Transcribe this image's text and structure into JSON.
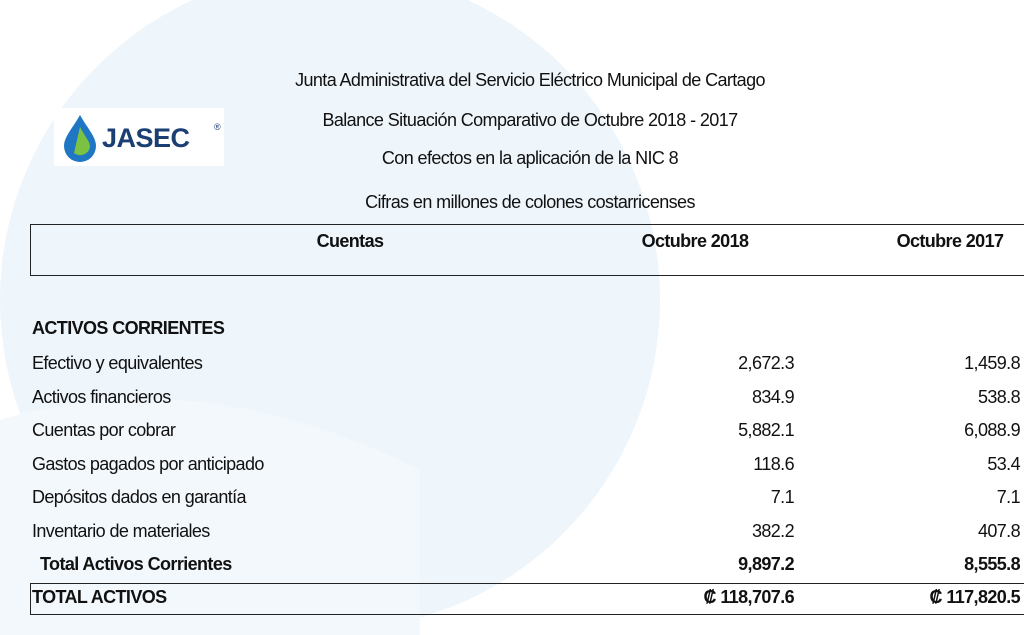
{
  "header": {
    "lines": [
      "Junta Administrativa del Servicio Eléctrico Municipal de Cartago",
      "Balance Situación Comparativo de Octubre 2018 - 2017",
      "Con efectos en la aplicación de la NIC 8",
      "Cifras en millones de colones costarricenses"
    ]
  },
  "logo": {
    "text": "JASEC",
    "mark": "®"
  },
  "table": {
    "columns": [
      "Cuentas",
      "Octubre 2018",
      "Octubre 2017"
    ],
    "section": "ACTIVOS  CORRIENTES",
    "rows": [
      [
        "Efectivo y equivalentes",
        "2,672.3",
        "1,459.8"
      ],
      [
        "Activos financieros",
        "834.9",
        "538.8"
      ],
      [
        "Cuentas por cobrar",
        "5,882.1",
        "6,088.9"
      ],
      [
        "Gastos pagados por anticipado",
        "118.6",
        "53.4"
      ],
      [
        "Depósitos dados en garantía",
        "7.1",
        "7.1"
      ],
      [
        "Inventario de materiales",
        "382.2",
        "407.8"
      ]
    ],
    "total": [
      "Total Activos Corrientes",
      "9,897.2",
      "8,555.8"
    ],
    "grand_total": [
      "TOTAL ACTIVOS",
      "₡ 118,707.6",
      "₡ 117,820.5"
    ]
  }
}
